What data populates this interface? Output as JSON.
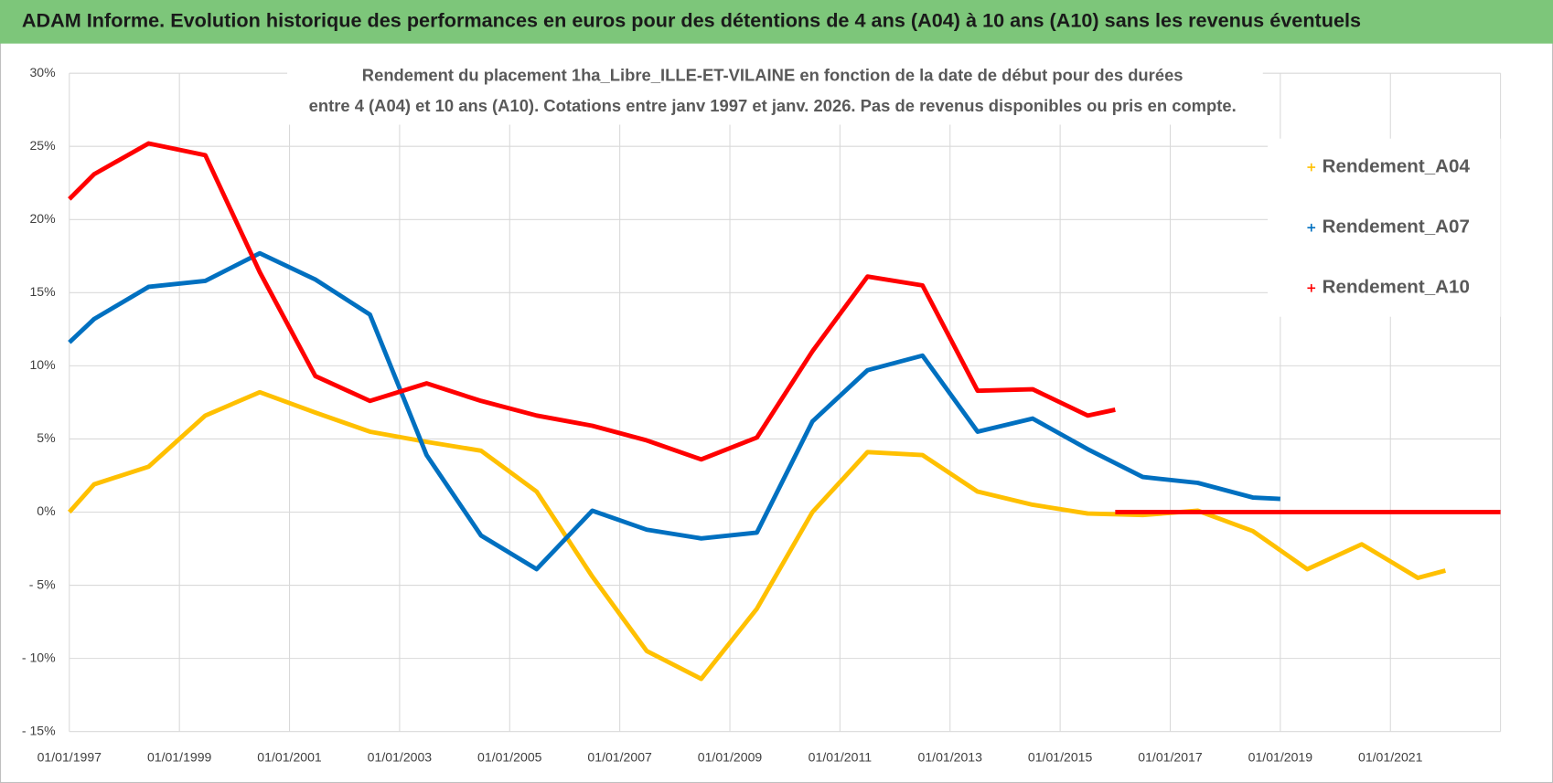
{
  "chart_data": {
    "type": "line",
    "title": "ADAM Informe. Evolution historique des performances en euros pour des détentions de 4 ans (A04) à 10 ans (A10) sans les revenus éventuels",
    "subtitle": [
      "Rendement du placement 1ha_Libre_ILLE-ET-VILAINE en fonction de la date de début pour des durées",
      "entre 4 (A04) et 10 ans (A10).  Cotations entre janv 1997 et janv. 2026. Pas de revenus disponibles ou pris en compte."
    ],
    "xlim": [
      1997,
      2023
    ],
    "xticks": [
      {
        "value": 1997,
        "label": "01/01/1997"
      },
      {
        "value": 1999,
        "label": "01/01/1999"
      },
      {
        "value": 2001,
        "label": "01/01/2001"
      },
      {
        "value": 2003,
        "label": "01/01/2003"
      },
      {
        "value": 2005,
        "label": "01/01/2005"
      },
      {
        "value": 2007,
        "label": "01/01/2007"
      },
      {
        "value": 2009,
        "label": "01/01/2009"
      },
      {
        "value": 2011,
        "label": "01/01/2011"
      },
      {
        "value": 2013,
        "label": "01/01/2013"
      },
      {
        "value": 2015,
        "label": "01/01/2015"
      },
      {
        "value": 2017,
        "label": "01/01/2017"
      },
      {
        "value": 2019,
        "label": "01/01/2019"
      },
      {
        "value": 2021,
        "label": "01/01/2021"
      }
    ],
    "ylim": [
      -15,
      30
    ],
    "yticks": [
      {
        "value": 30,
        "label": "30%"
      },
      {
        "value": 25,
        "label": "25%"
      },
      {
        "value": 20,
        "label": "20%"
      },
      {
        "value": 15,
        "label": "15%"
      },
      {
        "value": 10,
        "label": "10%"
      },
      {
        "value": 5,
        "label": "5%"
      },
      {
        "value": 0,
        "label": "0%"
      },
      {
        "value": -5,
        "label": "- 5%"
      },
      {
        "value": -10,
        "label": "- 10%"
      },
      {
        "value": -15,
        "label": "- 15%"
      }
    ],
    "grid": true,
    "legend": "upper right",
    "series": [
      {
        "name": "Rendement_A04",
        "color": "#ffc000",
        "x": [
          1997.0,
          1997.45,
          1998.44,
          1999.47,
          2000.46,
          2001.47,
          2002.46,
          2003.49,
          2004.48,
          2005.49,
          2006.5,
          2007.49,
          2008.48,
          2009.49,
          2010.5,
          2011.5,
          2012.5,
          2013.5,
          2014.5,
          2015.5,
          2016.5,
          2017.5,
          2018.5,
          2019.49,
          2020.48,
          2021.5,
          2022.0
        ],
        "values": [
          0,
          1.9,
          3.1,
          6.6,
          8.2,
          6.8,
          5.5,
          4.8,
          4.2,
          1.4,
          -4.4,
          -9.5,
          -11.4,
          -6.6,
          0,
          4.1,
          3.9,
          1.4,
          0.5,
          -0.1,
          -0.2,
          0.1,
          -1.3,
          -3.9,
          -2.2,
          -4.5,
          -4.0
        ]
      },
      {
        "name": "Rendement_A07",
        "color": "#0070c0",
        "x": [
          1997.0,
          1997.45,
          1998.44,
          1999.47,
          2000.46,
          2001.47,
          2002.46,
          2003.49,
          2004.48,
          2005.49,
          2006.5,
          2007.49,
          2008.48,
          2009.49,
          2010.5,
          2011.5,
          2012.5,
          2013.5,
          2014.5,
          2015.5,
          2016.5,
          2017.5,
          2018.5,
          2019.0
        ],
        "values": [
          11.6,
          13.2,
          15.4,
          15.8,
          17.7,
          15.9,
          13.5,
          3.9,
          -1.6,
          -3.9,
          0.1,
          -1.2,
          -1.8,
          -1.4,
          6.2,
          9.7,
          10.7,
          5.5,
          6.4,
          4.3,
          2.4,
          2.0,
          1.0,
          0.9
        ]
      },
      {
        "name": "Rendement_A10",
        "color": "#ff0000",
        "x": [
          1997.0,
          1997.45,
          1998.44,
          1999.47,
          2000.46,
          2001.47,
          2002.46,
          2003.49,
          2004.48,
          2005.49,
          2006.5,
          2007.49,
          2008.48,
          2009.49,
          2010.5,
          2011.5,
          2012.5,
          2013.5,
          2014.5,
          2015.5,
          2016.0,
          2016.0,
          2016.0,
          2017.0,
          2018.0,
          2019.0,
          2020.0,
          2021.0,
          2022.0,
          2023.0
        ],
        "values": [
          21.4,
          23.1,
          25.2,
          24.4,
          16.4,
          9.3,
          7.6,
          8.8,
          7.6,
          6.6,
          5.9,
          4.9,
          3.6,
          5.1,
          11.0,
          16.1,
          15.5,
          8.3,
          8.4,
          6.6,
          7.0,
          null,
          0,
          0,
          0,
          0,
          0,
          0,
          0,
          0
        ]
      }
    ]
  }
}
